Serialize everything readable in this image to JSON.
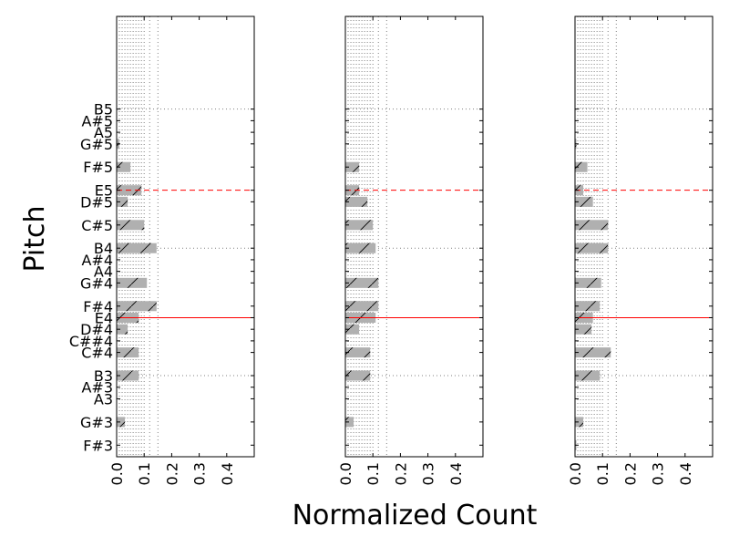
{
  "chart_data": {
    "type": "bar",
    "orientation": "horizontal",
    "xlabel": "Normalized Count",
    "ylabel": "Pitch",
    "xlim": [
      0,
      0.5
    ],
    "xticks": [
      "0.0",
      "0.1",
      "0.2",
      "0.3",
      "0.4"
    ],
    "ylim": [
      -0.5,
      18.5
    ],
    "pitches": [
      "F#3",
      "G#3",
      "A3",
      "A#3",
      "B3",
      "C#4",
      "C##4",
      "D#4",
      "E4",
      "F#4",
      "G#4",
      "A4",
      "A#4",
      "B4",
      "C#5",
      "D#5",
      "E5",
      "F#5",
      "G#5",
      "A5",
      "A#5",
      "B5"
    ],
    "pitch_positions": [
      0,
      1,
      2,
      2.5,
      3,
      4,
      4.5,
      5,
      5.5,
      6,
      7,
      7.5,
      8,
      8.5,
      9.5,
      10.5,
      11,
      12,
      13,
      13.5,
      14,
      14.5
    ],
    "reference_lines": {
      "dotted_gray": [
        3,
        8.5,
        14.5
      ],
      "solid_red": 5.5,
      "dashed_red": 11
    },
    "vertical_dotted_lines_x": [
      0.01,
      0.02,
      0.03,
      0.04,
      0.05,
      0.06,
      0.07,
      0.08,
      0.09,
      0.1,
      0.12,
      0.15
    ],
    "colors": {
      "bar_fill": "#b0b0b0",
      "bar_hatch": "#000000",
      "solid_line": "#ff0000",
      "dashed_line": "#ff0000",
      "grid": "#808080"
    },
    "panels": [
      {
        "bars": [
          {
            "pitch": "F#3",
            "value": 0.0
          },
          {
            "pitch": "G#3",
            "value": 0.03
          },
          {
            "pitch": "A3",
            "value": 0.0
          },
          {
            "pitch": "A#3",
            "value": 0.0
          },
          {
            "pitch": "B3",
            "value": 0.08
          },
          {
            "pitch": "C#4",
            "value": 0.08
          },
          {
            "pitch": "C##4",
            "value": 0.0
          },
          {
            "pitch": "D#4",
            "value": 0.04
          },
          {
            "pitch": "E4",
            "value": 0.08
          },
          {
            "pitch": "F#4",
            "value": 0.145
          },
          {
            "pitch": "G#4",
            "value": 0.11
          },
          {
            "pitch": "A4",
            "value": 0.0
          },
          {
            "pitch": "A#4",
            "value": 0.0
          },
          {
            "pitch": "B4",
            "value": 0.145
          },
          {
            "pitch": "C#5",
            "value": 0.1
          },
          {
            "pitch": "D#5",
            "value": 0.04
          },
          {
            "pitch": "E5",
            "value": 0.09
          },
          {
            "pitch": "F#5",
            "value": 0.05
          },
          {
            "pitch": "G#5",
            "value": 0.01
          },
          {
            "pitch": "A5",
            "value": 0.0
          },
          {
            "pitch": "A#5",
            "value": 0.0
          },
          {
            "pitch": "B5",
            "value": 0.0
          }
        ]
      },
      {
        "bars": [
          {
            "pitch": "F#3",
            "value": 0.0
          },
          {
            "pitch": "G#3",
            "value": 0.03
          },
          {
            "pitch": "A3",
            "value": 0.0
          },
          {
            "pitch": "A#3",
            "value": 0.0
          },
          {
            "pitch": "B3",
            "value": 0.09
          },
          {
            "pitch": "C#4",
            "value": 0.09
          },
          {
            "pitch": "C##4",
            "value": 0.0
          },
          {
            "pitch": "D#4",
            "value": 0.05
          },
          {
            "pitch": "E4",
            "value": 0.11
          },
          {
            "pitch": "F#4",
            "value": 0.12
          },
          {
            "pitch": "G#4",
            "value": 0.12
          },
          {
            "pitch": "A4",
            "value": 0.0
          },
          {
            "pitch": "A#4",
            "value": 0.0
          },
          {
            "pitch": "B4",
            "value": 0.11
          },
          {
            "pitch": "C#5",
            "value": 0.1
          },
          {
            "pitch": "D#5",
            "value": 0.08
          },
          {
            "pitch": "E5",
            "value": 0.05
          },
          {
            "pitch": "F#5",
            "value": 0.05
          },
          {
            "pitch": "G#5",
            "value": 0.0
          },
          {
            "pitch": "A5",
            "value": 0.0
          },
          {
            "pitch": "A#5",
            "value": 0.0
          },
          {
            "pitch": "B5",
            "value": 0.0
          }
        ]
      },
      {
        "bars": [
          {
            "pitch": "F#3",
            "value": 0.005
          },
          {
            "pitch": "G#3",
            "value": 0.03
          },
          {
            "pitch": "A3",
            "value": 0.0
          },
          {
            "pitch": "A#3",
            "value": 0.0
          },
          {
            "pitch": "B3",
            "value": 0.09
          },
          {
            "pitch": "C#4",
            "value": 0.13
          },
          {
            "pitch": "C##4",
            "value": 0.0
          },
          {
            "pitch": "D#4",
            "value": 0.06
          },
          {
            "pitch": "E4",
            "value": 0.065
          },
          {
            "pitch": "F#4",
            "value": 0.09
          },
          {
            "pitch": "G#4",
            "value": 0.095
          },
          {
            "pitch": "A4",
            "value": 0.0
          },
          {
            "pitch": "A#4",
            "value": 0.0
          },
          {
            "pitch": "B4",
            "value": 0.12
          },
          {
            "pitch": "C#5",
            "value": 0.12
          },
          {
            "pitch": "D#5",
            "value": 0.065
          },
          {
            "pitch": "E5",
            "value": 0.03
          },
          {
            "pitch": "F#5",
            "value": 0.045
          },
          {
            "pitch": "G#5",
            "value": 0.005
          },
          {
            "pitch": "A5",
            "value": 0.0
          },
          {
            "pitch": "A#5",
            "value": 0.0
          },
          {
            "pitch": "B5",
            "value": 0.0
          }
        ]
      }
    ]
  }
}
